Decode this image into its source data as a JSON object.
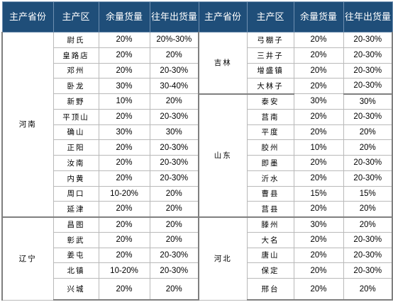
{
  "headers": {
    "province": "主产省份",
    "region": "主产区",
    "remaining": "余量货量",
    "last_year": "往年出货量"
  },
  "left": [
    {
      "province": "河南",
      "span": 12,
      "rows": [
        {
          "region": "尉氏",
          "remaining": "20%",
          "last_year": "20%-30%"
        },
        {
          "region": "皇路店",
          "remaining": "20%",
          "last_year": "20%"
        },
        {
          "region": "邓州",
          "remaining": "20%",
          "last_year": "20-30%"
        },
        {
          "region": "卧龙",
          "remaining": "30%",
          "last_year": "30-40%"
        },
        {
          "region": "新野",
          "remaining": "10%",
          "last_year": "20%"
        },
        {
          "region": "平顶山",
          "remaining": "20%",
          "last_year": "20-30%"
        },
        {
          "region": "确山",
          "remaining": "30%",
          "last_year": "30%"
        },
        {
          "region": "正阳",
          "remaining": "20%",
          "last_year": "20-30%"
        },
        {
          "region": "汝南",
          "remaining": "20%",
          "last_year": "20-30%"
        },
        {
          "region": "内黄",
          "remaining": "20%",
          "last_year": "20-30%"
        },
        {
          "region": "周口",
          "remaining": "10-20%",
          "last_year": "20%"
        },
        {
          "region": "延津",
          "remaining": "20%",
          "last_year": "20%"
        }
      ]
    },
    {
      "province": "辽宁",
      "span": 5,
      "rows": [
        {
          "region": "昌图",
          "remaining": "20%",
          "last_year": "20%"
        },
        {
          "region": "彰武",
          "remaining": "20%",
          "last_year": "20%"
        },
        {
          "region": "姜屯",
          "remaining": "20%",
          "last_year": "20-30%"
        },
        {
          "region": "北镇",
          "remaining": "10-20%",
          "last_year": "20-30%"
        },
        {
          "region": "兴城",
          "remaining": "20%",
          "last_year": "20%"
        }
      ]
    }
  ],
  "right": [
    {
      "province": "吉林",
      "span": 4,
      "rows": [
        {
          "region": "弓棚子",
          "remaining": "20%",
          "last_year": "20-30%"
        },
        {
          "region": "三井子",
          "remaining": "20%",
          "last_year": "20-30%"
        },
        {
          "region": "增盛镇",
          "remaining": "20%",
          "last_year": "20-30%"
        },
        {
          "region": "大林子",
          "remaining": "20%",
          "last_year": "20-30%"
        }
      ]
    },
    {
      "province": "山东",
      "span": 8,
      "rows": [
        {
          "region": "泰安",
          "remaining": "30%",
          "last_year": "30%"
        },
        {
          "region": "莒南",
          "remaining": "20%",
          "last_year": "20-30%"
        },
        {
          "region": "平度",
          "remaining": "20%",
          "last_year": "20%"
        },
        {
          "region": "胶州",
          "remaining": "10%",
          "last_year": "20%"
        },
        {
          "region": "即墨",
          "remaining": "20%",
          "last_year": "20-30%"
        },
        {
          "region": "沂水",
          "remaining": "20%",
          "last_year": "20-30%"
        },
        {
          "region": "曹县",
          "remaining": "15%",
          "last_year": "15%"
        },
        {
          "region": "莒县",
          "remaining": "20%",
          "last_year": "20%"
        }
      ]
    },
    {
      "province": "河北",
      "span": 5,
      "rows": [
        {
          "region": "滕州",
          "remaining": "30%",
          "last_year": "20%"
        },
        {
          "region": "大名",
          "remaining": "20%",
          "last_year": "20-30%"
        },
        {
          "region": "唐山",
          "remaining": "20%",
          "last_year": "20-30%"
        },
        {
          "region": "保定",
          "remaining": "20%",
          "last_year": "20-30%"
        },
        {
          "region": "邢台",
          "remaining": "20%",
          "last_year": "20%"
        }
      ]
    }
  ]
}
